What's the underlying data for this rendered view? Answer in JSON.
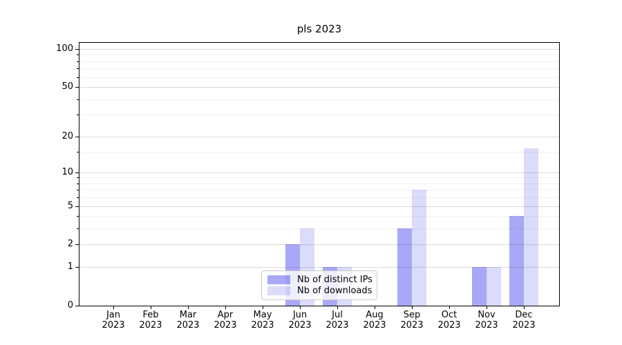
{
  "chart_data": {
    "type": "bar",
    "title": "pls 2023",
    "categories": [
      "Jan",
      "Feb",
      "Mar",
      "Apr",
      "May",
      "Jun",
      "Jul",
      "Aug",
      "Sep",
      "Oct",
      "Nov",
      "Dec"
    ],
    "category_year": "2023",
    "series": [
      {
        "name": "Nb of distinct IPs",
        "color": "#0000E6",
        "alpha": 0.34,
        "values": [
          0,
          0,
          0,
          0,
          0,
          2,
          1,
          0,
          3,
          0,
          1,
          4
        ]
      },
      {
        "name": "Nb of downloads",
        "color": "#0000E6",
        "alpha": 0.14,
        "values": [
          0,
          0,
          0,
          0,
          0,
          3,
          1,
          0,
          7,
          0,
          1,
          16
        ]
      }
    ],
    "yscale": "log1p",
    "ylim": [
      0,
      115
    ],
    "y_major_ticks": [
      0,
      1,
      2,
      5,
      10,
      20,
      50,
      100
    ],
    "y_minor_ticks": [
      3,
      4,
      6,
      7,
      8,
      9,
      15,
      30,
      40,
      60,
      70,
      80,
      90
    ],
    "grid": "horizontal, major and faint minor lines",
    "legend_position": "lower center inside axes",
    "xlabel": "",
    "ylabel": ""
  },
  "colors": {
    "bar_distinct_ips_rendered": "#A9ABF5",
    "bar_downloads_rendered": "#DCDDFB",
    "grid_major": "#D9D9D9",
    "grid_minor": "#F3F3F3",
    "spine": "#000000",
    "legend_border": "#CCCCCC"
  }
}
